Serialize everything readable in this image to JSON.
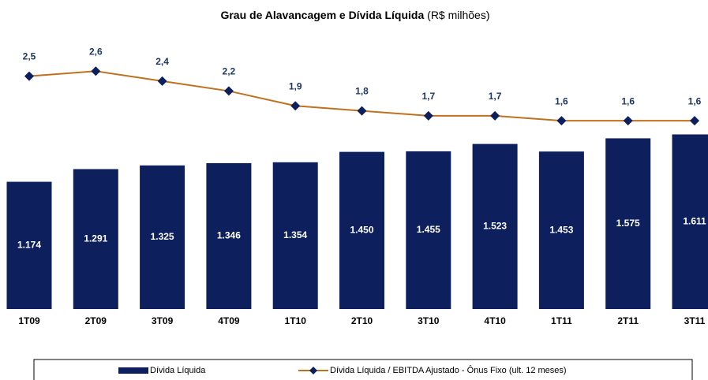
{
  "chart_data": {
    "type": "bar_line",
    "title": "Grau de Alavancagem e Dívida Líquida",
    "subtitle": "(R$ milhões)",
    "categories": [
      "1T09",
      "2T09",
      "3T09",
      "4T09",
      "1T10",
      "2T10",
      "3T10",
      "4T10",
      "1T11",
      "2T11",
      "3T11"
    ],
    "series": [
      {
        "name": "Dívida Líquida",
        "type": "bar",
        "color": "#0d1f5c",
        "values": [
          1174,
          1291,
          1325,
          1346,
          1354,
          1450,
          1455,
          1523,
          1453,
          1575,
          1611
        ],
        "value_labels": [
          "1.174",
          "1.291",
          "1.325",
          "1.346",
          "1.354",
          "1.450",
          "1.455",
          "1.523",
          "1.453",
          "1.575",
          "1.611"
        ]
      },
      {
        "name": "Dívida Líquida / EBITDA Ajustado - Ônus Fixo (ult. 12 meses)",
        "type": "line",
        "axis": "y2",
        "color": "#c0701f",
        "marker_color": "#0d1f5c",
        "values": [
          2.5,
          2.6,
          2.4,
          2.2,
          1.9,
          1.8,
          1.7,
          1.7,
          1.6,
          1.6,
          1.6
        ],
        "value_labels": [
          "2,5",
          "2,6",
          "2,4",
          "2,2",
          "1,9",
          "1,8",
          "1,7",
          "1,7",
          "1,6",
          "1,6",
          "1,6"
        ]
      }
    ],
    "ylim": [
      0,
      2560
    ],
    "y2lim": [
      -2.2,
      3.4
    ],
    "legend": "bottom"
  }
}
